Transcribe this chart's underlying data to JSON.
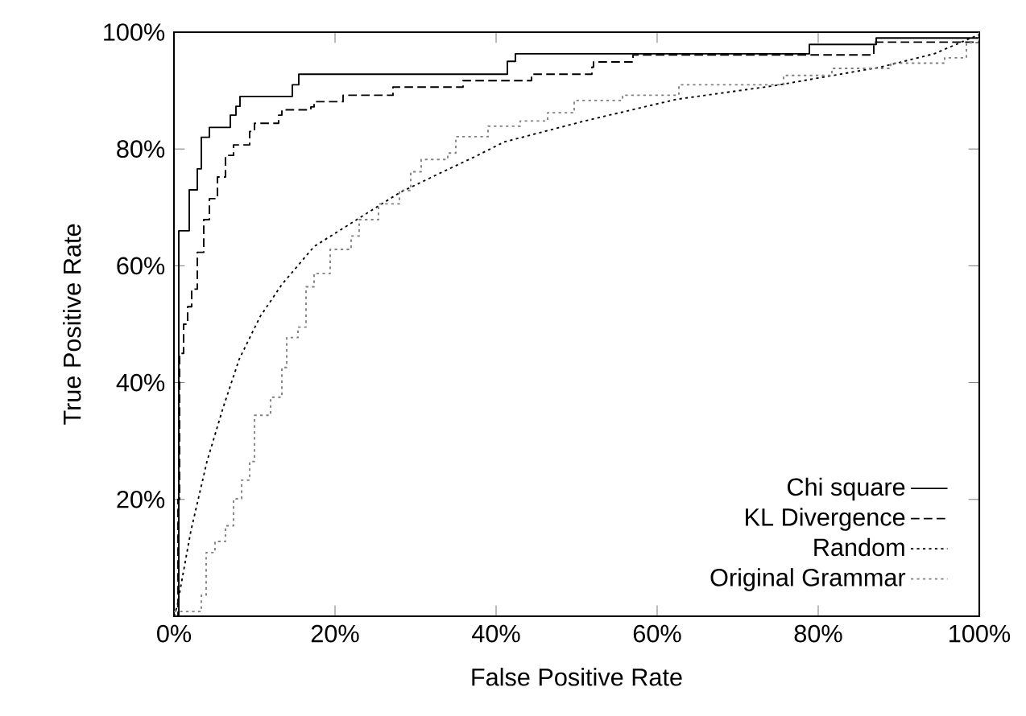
{
  "chart_data": {
    "type": "line",
    "xlabel": "False Positive Rate",
    "ylabel": "True Positive Rate",
    "xlim": [
      0,
      100
    ],
    "ylim": [
      0,
      100
    ],
    "xticks": [
      {
        "value": 0,
        "label": "0%"
      },
      {
        "value": 20,
        "label": "20%"
      },
      {
        "value": 40,
        "label": "40%"
      },
      {
        "value": 60,
        "label": "60%"
      },
      {
        "value": 80,
        "label": "80%"
      },
      {
        "value": 100,
        "label": "100%"
      }
    ],
    "yticks": [
      {
        "value": 20,
        "label": "20%"
      },
      {
        "value": 40,
        "label": "40%"
      },
      {
        "value": 60,
        "label": "60%"
      },
      {
        "value": 80,
        "label": "80%"
      },
      {
        "value": 100,
        "label": "100%"
      }
    ],
    "grid": false,
    "legend": "bottom right",
    "marker": "none",
    "series": [
      {
        "name": "Chi square",
        "type": "step",
        "color": "#000000",
        "line_style": "solid",
        "x": [
          0,
          0.6,
          1.9,
          2.9,
          3.4,
          4.4,
          7,
          7.7,
          8.2,
          14.7,
          15.5,
          41.4,
          42.4,
          78.9,
          87.2,
          100
        ],
        "values": [
          0,
          66,
          73,
          76.6,
          82,
          83.7,
          85.8,
          87.3,
          89,
          91,
          92.8,
          95,
          96.3,
          97.9,
          99,
          100
        ]
      },
      {
        "name": "KL Divergence",
        "type": "step",
        "color": "#000000",
        "line_style": "dashed",
        "x": [
          0,
          0.5,
          0.7,
          1.2,
          1.7,
          2.2,
          2.9,
          3.7,
          4.4,
          5.4,
          6.4,
          7.4,
          9.4,
          10,
          13,
          13.4,
          17,
          17.4,
          21,
          27.2,
          35.9,
          44.4,
          51.9,
          52.1,
          57,
          86.9,
          100
        ],
        "values": [
          0,
          20,
          45,
          50,
          53,
          56,
          62.3,
          67.9,
          71.5,
          75.2,
          78.9,
          80.7,
          83,
          84.4,
          85.8,
          86.7,
          87.2,
          88.1,
          89.2,
          90.6,
          91.7,
          92.8,
          94,
          94.9,
          96.1,
          98.3,
          100
        ]
      },
      {
        "name": "Random",
        "color": "#000000",
        "line_style": "dotted",
        "x": [
          0,
          0.4,
          2.1,
          4.1,
          6.1,
          8.1,
          10.7,
          13.4,
          17.4,
          22.7,
          28,
          33.4,
          37.4,
          41,
          51,
          62.4,
          74.4,
          87.7,
          94.4,
          100
        ],
        "values": [
          0,
          1.7,
          14.6,
          26.5,
          35.7,
          44,
          51.3,
          56.8,
          63.3,
          67.9,
          72.5,
          76.1,
          78.7,
          81.2,
          84.8,
          88.5,
          90.8,
          94,
          96.3,
          99.6
        ]
      },
      {
        "name": "Original Grammar",
        "type": "step",
        "color": "#808080",
        "line_style": "dotted",
        "x": [
          0,
          3.4,
          4,
          5.1,
          6.4,
          7.4,
          8.4,
          9.4,
          10,
          12,
          13.4,
          14,
          15.4,
          16.4,
          17.4,
          19.4,
          22,
          23,
          25.4,
          28,
          29.4,
          30.7,
          34,
          35,
          39,
          43,
          46.4,
          49.7,
          55.7,
          62.7,
          75.7,
          81.7,
          89,
          95.7,
          98.4,
          100
        ],
        "values": [
          0.8,
          3.6,
          10.9,
          12.8,
          15.5,
          20.1,
          23.3,
          26.5,
          34.4,
          37.5,
          42.6,
          47.7,
          49.5,
          56.4,
          58.7,
          62.8,
          65.1,
          67.9,
          70.6,
          72.9,
          76.1,
          78.2,
          79.3,
          82.1,
          83.9,
          84.8,
          86.2,
          88.3,
          89.2,
          91,
          92.6,
          93.8,
          94.7,
          95.6,
          98.2,
          100
        ]
      }
    ]
  }
}
